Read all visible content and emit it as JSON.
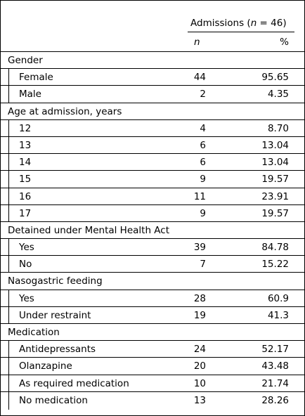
{
  "header": {
    "admissions_prefix": "Admissions (",
    "admissions_n": "n",
    "admissions_suffix": " = 46)",
    "col_n": "n",
    "col_pct": "%"
  },
  "rows": [
    {
      "type": "section",
      "label": "Gender"
    },
    {
      "type": "item",
      "label": "Female",
      "n": "44",
      "pct": "95.65"
    },
    {
      "type": "item",
      "label": "Male",
      "n": "2",
      "pct": "4.35"
    },
    {
      "type": "section",
      "label": "Age at admission, years"
    },
    {
      "type": "item",
      "label": "12",
      "n": "4",
      "pct": "8.70"
    },
    {
      "type": "item",
      "label": "13",
      "n": "6",
      "pct": "13.04"
    },
    {
      "type": "item",
      "label": "14",
      "n": "6",
      "pct": "13.04"
    },
    {
      "type": "item",
      "label": "15",
      "n": "9",
      "pct": "19.57"
    },
    {
      "type": "item",
      "label": "16",
      "n": "11",
      "pct": "23.91"
    },
    {
      "type": "item",
      "label": "17",
      "n": "9",
      "pct": "19.57"
    },
    {
      "type": "section",
      "label": "Detained under Mental Health Act"
    },
    {
      "type": "item",
      "label": "Yes",
      "n": "39",
      "pct": "84.78"
    },
    {
      "type": "item",
      "label": "No",
      "n": "7",
      "pct": "15.22"
    },
    {
      "type": "section",
      "label": "Nasogastric feeding"
    },
    {
      "type": "item",
      "label": "Yes",
      "n": "28",
      "pct": "60.9"
    },
    {
      "type": "item",
      "label": "Under restraint",
      "n": "19",
      "pct": "41.3"
    },
    {
      "type": "section",
      "label": "Medication"
    },
    {
      "type": "item",
      "label": "Antidepressants",
      "n": "24",
      "pct": "52.17"
    },
    {
      "type": "item",
      "label": "Olanzapine",
      "n": "20",
      "pct": "43.48"
    },
    {
      "type": "item",
      "label": "As required medication",
      "n": "10",
      "pct": "21.74"
    },
    {
      "type": "item",
      "label": "No medication",
      "n": "13",
      "pct": "28.26"
    }
  ]
}
